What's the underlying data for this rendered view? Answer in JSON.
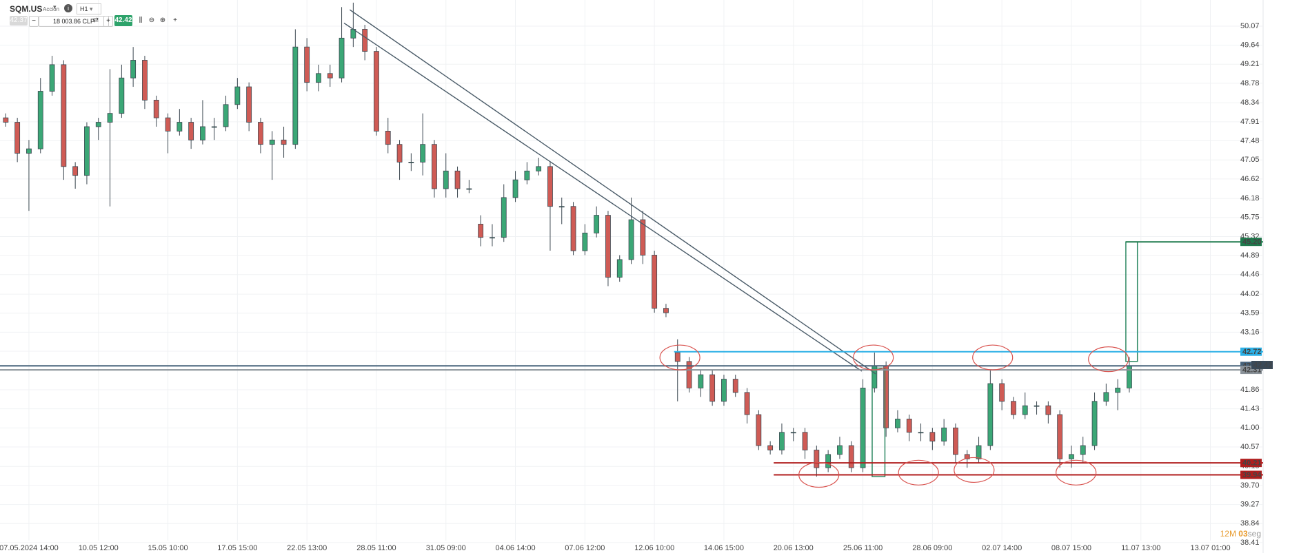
{
  "toolbar": {
    "symbol": "SQM.US",
    "kind": "Acción",
    "timeframe": "H1",
    "sell": "42.37",
    "amount": "18 003.86 CLP",
    "buy": "42.42"
  },
  "countdown": {
    "minutes": "12M",
    "seconds": "03",
    "unit": "seg"
  },
  "chart_data": {
    "type": "candlestick",
    "categories": [
      null,
      null,
      "07.05.2024 14:00",
      null,
      null,
      null,
      null,
      null,
      "10.05 12:00",
      null,
      null,
      null,
      null,
      null,
      "15.05 10:00",
      null,
      null,
      null,
      null,
      null,
      "17.05 15:00",
      null,
      null,
      null,
      null,
      null,
      "22.05 13:00",
      null,
      null,
      null,
      null,
      null,
      "28.05 11:00",
      null,
      null,
      null,
      null,
      null,
      "31.05 09:00",
      null,
      null,
      null,
      null,
      null,
      "04.06 14:00",
      null,
      null,
      null,
      null,
      null,
      "07.06 12:00",
      null,
      null,
      null,
      null,
      null,
      "12.06 10:00",
      null,
      null,
      null,
      null,
      null,
      "14.06 15:00",
      null,
      null,
      null,
      null,
      null,
      "20.06 13:00",
      null,
      null,
      null,
      null,
      null,
      "25.06 11:00",
      null,
      null,
      null,
      null,
      null,
      "28.06 09:00",
      null,
      null,
      null,
      null,
      null,
      "02.07 14:00",
      null,
      null,
      null,
      null,
      null,
      "08.07 15:00",
      null,
      null,
      null,
      null,
      null,
      "11.07 13:00",
      null,
      null,
      null,
      null,
      null,
      "13.07 01:00"
    ],
    "ohlc": [
      [
        48.0,
        48.1,
        47.8,
        47.9
      ],
      [
        47.9,
        48.0,
        47.0,
        47.2
      ],
      [
        47.2,
        47.5,
        45.9,
        47.3
      ],
      [
        47.3,
        48.9,
        47.2,
        48.6
      ],
      [
        48.6,
        49.4,
        48.5,
        49.2
      ],
      [
        49.2,
        49.3,
        46.6,
        46.9
      ],
      [
        46.9,
        47.0,
        46.4,
        46.7
      ],
      [
        46.7,
        47.9,
        46.5,
        47.8
      ],
      [
        47.8,
        48.0,
        47.5,
        47.9
      ],
      [
        47.9,
        49.1,
        46.0,
        48.1
      ],
      [
        48.1,
        49.2,
        48.0,
        48.9
      ],
      [
        48.9,
        49.6,
        48.7,
        49.3
      ],
      [
        49.3,
        49.4,
        48.2,
        48.4
      ],
      [
        48.4,
        48.5,
        47.8,
        48.0
      ],
      [
        48.0,
        48.1,
        47.2,
        47.7
      ],
      [
        47.7,
        48.2,
        47.6,
        47.9
      ],
      [
        47.9,
        48.0,
        47.3,
        47.5
      ],
      [
        47.5,
        48.4,
        47.4,
        47.8
      ],
      [
        47.8,
        48.0,
        47.5,
        47.8
      ],
      [
        47.8,
        48.5,
        47.7,
        48.3
      ],
      [
        48.3,
        48.9,
        48.2,
        48.7
      ],
      [
        48.7,
        48.8,
        47.7,
        47.9
      ],
      [
        47.9,
        48.0,
        47.2,
        47.4
      ],
      [
        47.4,
        47.7,
        46.6,
        47.5
      ],
      [
        47.5,
        47.8,
        47.1,
        47.4
      ],
      [
        47.4,
        50.0,
        47.3,
        49.6
      ],
      [
        49.6,
        49.8,
        48.6,
        48.8
      ],
      [
        48.8,
        49.2,
        48.6,
        49.0
      ],
      [
        49.0,
        49.2,
        48.7,
        48.9
      ],
      [
        48.9,
        50.5,
        48.8,
        49.8
      ],
      [
        49.8,
        50.6,
        49.6,
        50.0
      ],
      [
        50.0,
        50.1,
        49.3,
        49.5
      ],
      [
        49.5,
        49.6,
        47.6,
        47.7
      ],
      [
        47.7,
        48.0,
        47.2,
        47.4
      ],
      [
        47.4,
        47.5,
        46.6,
        47.0
      ],
      [
        47.0,
        47.2,
        46.8,
        47.0
      ],
      [
        47.0,
        48.1,
        46.7,
        47.4
      ],
      [
        47.4,
        47.5,
        46.2,
        46.4
      ],
      [
        46.4,
        47.2,
        46.2,
        46.8
      ],
      [
        46.8,
        46.9,
        46.2,
        46.4
      ],
      [
        46.4,
        46.6,
        46.3,
        46.4
      ],
      [
        45.6,
        45.8,
        45.1,
        45.3
      ],
      [
        45.3,
        45.6,
        45.1,
        45.3
      ],
      [
        45.3,
        46.5,
        45.2,
        46.2
      ],
      [
        46.2,
        46.8,
        46.1,
        46.6
      ],
      [
        46.6,
        47.0,
        46.5,
        46.8
      ],
      [
        46.8,
        47.1,
        46.7,
        46.9
      ],
      [
        46.9,
        47.0,
        45.0,
        46.0
      ],
      [
        46.0,
        46.2,
        45.6,
        46.0
      ],
      [
        46.0,
        46.1,
        44.9,
        45.0
      ],
      [
        45.0,
        45.6,
        44.9,
        45.4
      ],
      [
        45.4,
        46.0,
        45.3,
        45.8
      ],
      [
        45.8,
        45.9,
        44.2,
        44.4
      ],
      [
        44.4,
        44.9,
        44.3,
        44.8
      ],
      [
        44.8,
        46.2,
        44.7,
        45.7
      ],
      [
        45.7,
        45.9,
        44.7,
        44.9
      ],
      [
        44.9,
        45.0,
        43.6,
        43.7
      ],
      [
        43.7,
        43.8,
        43.5,
        43.6
      ],
      [
        42.7,
        43.0,
        41.6,
        42.5
      ],
      [
        42.5,
        42.6,
        41.8,
        41.9
      ],
      [
        41.9,
        42.3,
        41.7,
        42.2
      ],
      [
        42.2,
        42.3,
        41.5,
        41.6
      ],
      [
        41.6,
        42.2,
        41.5,
        42.1
      ],
      [
        42.1,
        42.2,
        41.7,
        41.8
      ],
      [
        41.8,
        41.9,
        41.1,
        41.3
      ],
      [
        41.3,
        41.4,
        40.5,
        40.6
      ],
      [
        40.6,
        40.7,
        40.4,
        40.5
      ],
      [
        40.5,
        41.1,
        40.4,
        40.9
      ],
      [
        40.9,
        41.0,
        40.7,
        40.9
      ],
      [
        40.9,
        41.0,
        40.3,
        40.5
      ],
      [
        40.5,
        40.6,
        39.9,
        40.1
      ],
      [
        40.1,
        40.5,
        40.0,
        40.4
      ],
      [
        40.4,
        40.8,
        40.3,
        40.6
      ],
      [
        40.6,
        40.7,
        40.0,
        40.1
      ],
      [
        40.1,
        42.1,
        40.0,
        41.9
      ],
      [
        41.9,
        42.7,
        41.8,
        42.4
      ],
      [
        42.4,
        42.5,
        40.8,
        41.0
      ],
      [
        41.0,
        41.4,
        40.9,
        41.2
      ],
      [
        41.2,
        41.3,
        40.7,
        40.9
      ],
      [
        40.9,
        41.1,
        40.7,
        40.9
      ],
      [
        40.9,
        41.0,
        40.5,
        40.7
      ],
      [
        40.7,
        41.2,
        40.6,
        41.0
      ],
      [
        41.0,
        41.1,
        40.2,
        40.4
      ],
      [
        40.4,
        40.5,
        40.1,
        40.3
      ],
      [
        40.3,
        40.8,
        40.2,
        40.6
      ],
      [
        40.6,
        42.3,
        40.5,
        42.0
      ],
      [
        42.0,
        42.1,
        41.4,
        41.6
      ],
      [
        41.6,
        41.7,
        41.2,
        41.3
      ],
      [
        41.3,
        41.8,
        41.2,
        41.5
      ],
      [
        41.5,
        41.6,
        41.3,
        41.5
      ],
      [
        41.5,
        41.6,
        41.1,
        41.3
      ],
      [
        41.3,
        41.4,
        40.1,
        40.3
      ],
      [
        40.3,
        40.6,
        40.1,
        40.4
      ],
      [
        40.4,
        40.8,
        40.2,
        40.6
      ],
      [
        40.6,
        41.8,
        40.5,
        41.6
      ],
      [
        41.6,
        42.0,
        41.5,
        41.8
      ],
      [
        41.8,
        42.1,
        41.4,
        41.9
      ],
      [
        41.9,
        42.6,
        41.8,
        42.4
      ],
      null,
      null,
      null,
      null,
      null,
      null,
      null
    ],
    "up_color": "#3ba776",
    "down_color": "#cf5b55",
    "ylim": [
      38.3,
      50.66
    ],
    "yticks": [
      50.07,
      49.64,
      49.21,
      48.78,
      48.34,
      47.91,
      47.48,
      47.05,
      46.62,
      46.18,
      45.75,
      45.32,
      44.89,
      44.46,
      44.02,
      43.59,
      43.16,
      42.73,
      41.86,
      41.43,
      {
        "value": 41,
        "label": "41.00"
      },
      40.57,
      40.13,
      {
        "value": 39.7,
        "label": "39.70"
      },
      39.27,
      38.84,
      38.41
    ],
    "grid": true,
    "levels": [
      {
        "price": {
          "value": 45.2,
          "label": "45.20"
        },
        "color": "#1f7a4d",
        "from": 96.7
      },
      {
        "price": 42.72,
        "color": "#2bb0e6",
        "from": 57.7
      },
      {
        "price": {
          "value": 42.4,
          "label": "42.40"
        },
        "color": "#46627a"
      },
      {
        "price": 42.31,
        "color": "#8a9299"
      },
      {
        "price": 40.21,
        "color": "#b01e1e",
        "from": 66.3
      },
      {
        "price": 39.94,
        "color": "#b01e1e",
        "from": 66.3
      }
    ],
    "last_price": 42.42,
    "trendlines": [
      {
        "points": [
          [
            29.7,
            50.44
          ],
          [
            75.1,
            42.22
          ]
        ]
      },
      {
        "points": [
          [
            29.2,
            50.14
          ],
          [
            73.9,
            42.28
          ]
        ]
      }
    ],
    "boxes": [
      {
        "x": [
          74.8,
          75.9
        ],
        "y": [
          39.9,
          42.35
        ]
      },
      {
        "x": [
          96.7,
          97.7
        ],
        "y": [
          42.5,
          45.2
        ]
      }
    ],
    "ellipses": [
      {
        "x": 58.2,
        "y": 42.59
      },
      {
        "x": 74.9,
        "y": 42.59
      },
      {
        "x": 85.2,
        "y": 42.59
      },
      {
        "x": 95.2,
        "y": 42.55
      },
      {
        "x": 70.2,
        "y": 39.94
      },
      {
        "x": 78.8,
        "y": 39.99
      },
      {
        "x": 83.6,
        "y": 40.05
      },
      {
        "x": 92.4,
        "y": 39.99
      }
    ]
  }
}
